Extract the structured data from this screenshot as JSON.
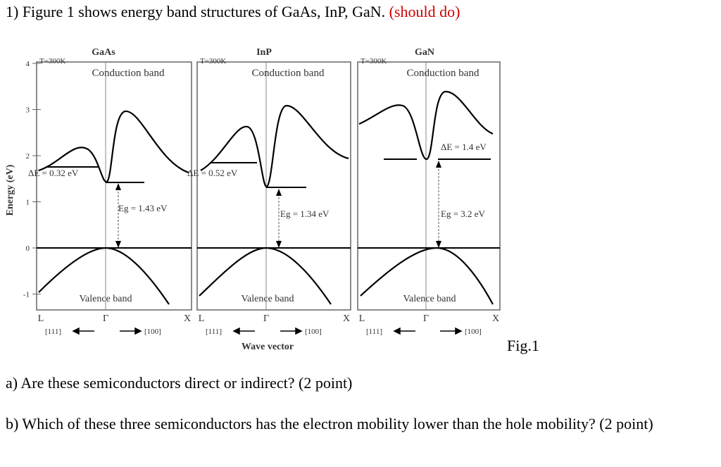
{
  "question": {
    "text": "1) Figure 1 shows energy band structures of GaAs, InP, GaN.",
    "note": "(should do)"
  },
  "figure": {
    "y_axis_label": "Energy (eV)",
    "y_ticks": [
      "4",
      "3",
      "2",
      "1",
      "0",
      "-1"
    ],
    "panels": [
      {
        "temperature": "T=300K",
        "material": "GaAs",
        "conduction_label": "Conduction band",
        "delta_e": "ΔE = 0.32 eV",
        "gap": "Eg = 1.43 eV",
        "valence_label": "Valence band",
        "k_labels": [
          "L",
          "Γ",
          "X"
        ],
        "directions": [
          "[111]",
          "[100]"
        ]
      },
      {
        "temperature": "T=300K",
        "material": "InP",
        "conduction_label": "Conduction band",
        "delta_e": "ΔE = 0.52 eV",
        "gap": "Eg = 1.34 eV",
        "valence_label": "Valence band",
        "k_labels": [
          "L",
          "Γ",
          "X"
        ],
        "directions": [
          "[111]",
          "[100]"
        ]
      },
      {
        "temperature": "T=300K",
        "material": "GaN",
        "conduction_label": "Conduction band",
        "delta_e": "ΔE = 1.4 eV",
        "gap": "Eg = 3.2 eV",
        "valence_label": "Valence band",
        "k_labels": [
          "L",
          "Γ",
          "X"
        ],
        "directions": [
          "[111]",
          "[100]"
        ]
      }
    ],
    "x_axis_label": "Wave vector",
    "caption": "Fig.1"
  },
  "parts": [
    {
      "text": "a) Are these semiconductors direct or indirect? (2 point)"
    },
    {
      "text": "b) Which of these three semiconductors has the electron mobility lower than the hole mobility? (2 point)"
    }
  ]
}
